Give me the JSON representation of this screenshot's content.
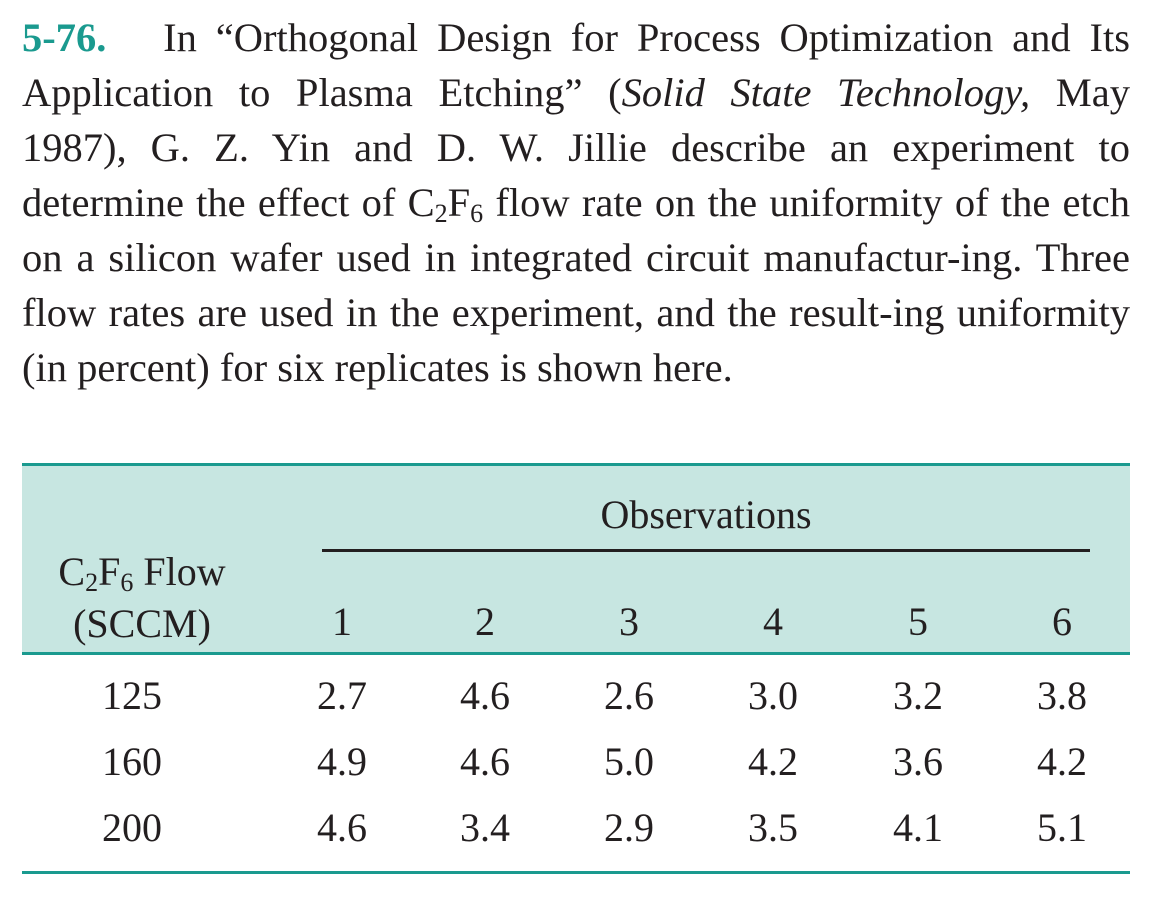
{
  "problem": {
    "number": "5-76.",
    "text_before_title": "In “",
    "article_title": "Orthogonal Design for Process Optimization and Its Application to Plasma Etching",
    "text_after_title": "” (",
    "journal": "Solid State Technology,",
    "text_date_authors": " May 1987), G. Z. Yin and D. W. Jillie describe an experiment to determine the effect of C",
    "sub1": "2",
    "mid1": "F",
    "sub2": "6",
    "text_rest": " flow rate on the uniformity of the etch on a silicon wafer used in integrated circuit manufactur-ing. Three flow rates are used in the experiment, and the result-ing uniformity (in percent) for six replicates is shown here."
  },
  "table": {
    "observations_header": "Observations",
    "flow_header": {
      "line1_a": "C",
      "line1_sub1": "2",
      "line1_b": "F",
      "line1_sub2": "6",
      "line1_c": " Flow",
      "line2": "(SCCM)"
    },
    "columns": [
      "1",
      "2",
      "3",
      "4",
      "5",
      "6"
    ],
    "rows": [
      {
        "flow": "125",
        "values": [
          "2.7",
          "4.6",
          "2.6",
          "3.0",
          "3.2",
          "3.8"
        ]
      },
      {
        "flow": "160",
        "values": [
          "4.9",
          "4.6",
          "5.0",
          "4.2",
          "3.6",
          "4.2"
        ]
      },
      {
        "flow": "200",
        "values": [
          "4.6",
          "3.4",
          "2.9",
          "3.5",
          "4.1",
          "5.1"
        ]
      }
    ]
  },
  "colors": {
    "accent": "#1a9a8f",
    "header_fill": "#c7e6e1",
    "text": "#231f20"
  }
}
